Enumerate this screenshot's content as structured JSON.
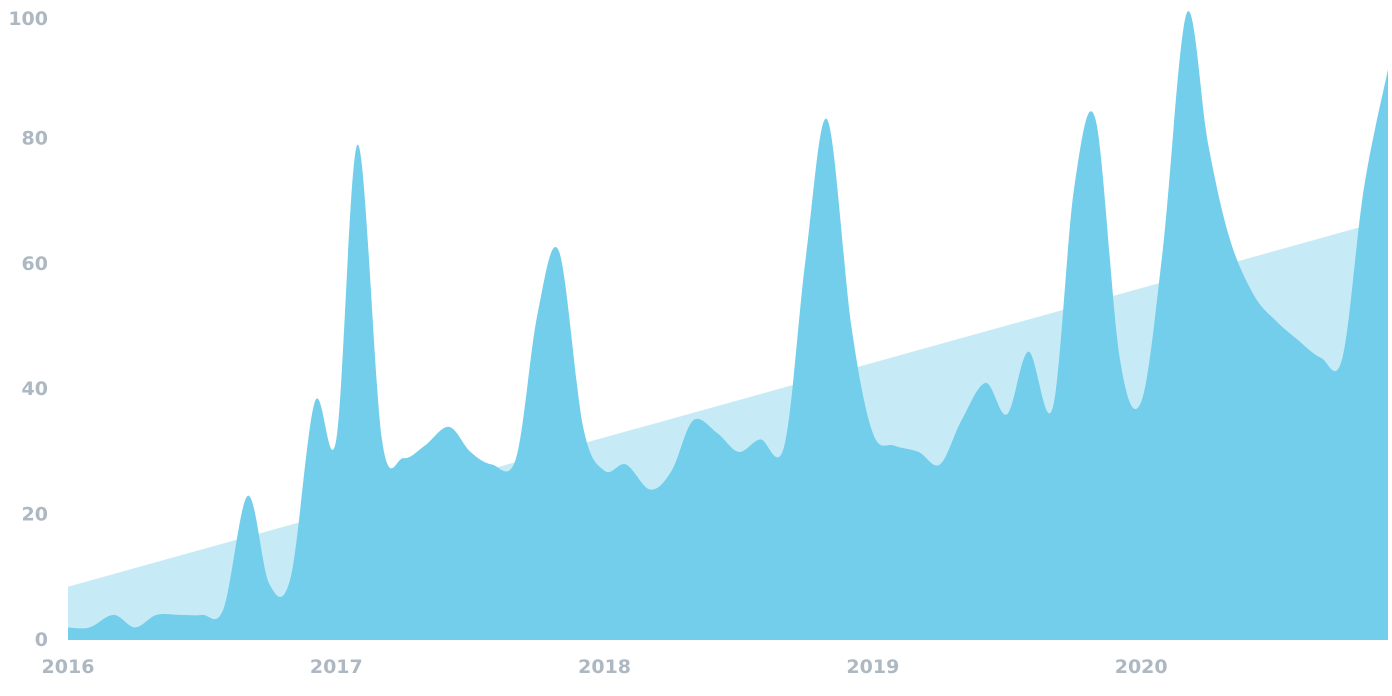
{
  "chart_data": {
    "type": "area",
    "title": "",
    "xlabel": "",
    "ylabel": "",
    "x_start": "2016-01",
    "x_end": "2020-12",
    "xlim": [
      2016.0,
      2020.92
    ],
    "ylim": [
      0,
      100
    ],
    "x_ticks": [
      "2016",
      "2017",
      "2018",
      "2019",
      "2020"
    ],
    "y_ticks": [
      "0",
      "20",
      "40",
      "60",
      "80",
      "100"
    ],
    "grid": false,
    "legend": "none",
    "colors": {
      "series": "#72ceea",
      "trend": "#c7ebf6",
      "tick_text": "#aeb8c2"
    },
    "series": [
      {
        "x": [
          2016.0,
          2016.08,
          2016.17,
          2016.25,
          2016.33,
          2016.42,
          2016.5,
          2016.58,
          2016.67,
          2016.75,
          2016.83,
          2016.92,
          2017.0,
          2017.08,
          2017.17,
          2017.25,
          2017.33,
          2017.42,
          2017.5,
          2017.58,
          2017.67,
          2017.75,
          2017.83,
          2017.92,
          2018.0,
          2018.08,
          2018.17,
          2018.25,
          2018.33,
          2018.42,
          2018.5,
          2018.58,
          2018.67,
          2018.75,
          2018.83,
          2018.92,
          2019.0,
          2019.08,
          2019.17,
          2019.25,
          2019.33,
          2019.42,
          2019.5,
          2019.58,
          2019.67,
          2019.75,
          2019.83,
          2019.92,
          2020.0,
          2020.08,
          2020.17,
          2020.25,
          2020.33,
          2020.42,
          2020.5,
          2020.58,
          2020.67,
          2020.75,
          2020.83,
          2020.92
        ],
        "values": [
          2,
          2,
          4,
          2,
          4,
          4,
          4,
          5,
          23,
          9,
          10,
          38,
          32,
          79,
          32,
          29,
          31,
          34,
          30,
          28,
          29,
          52,
          62,
          34,
          27,
          28,
          24,
          27,
          35,
          33,
          30,
          32,
          31,
          61,
          83,
          50,
          33,
          31,
          30,
          28,
          35,
          41,
          36,
          46,
          37,
          72,
          83,
          45,
          38,
          62,
          100,
          79,
          64,
          55,
          51,
          48,
          45,
          45,
          72,
          91
        ]
      },
      {
        "x": [
          2016.0,
          2020.83
        ],
        "values": [
          8.5,
          66
        ]
      }
    ]
  }
}
